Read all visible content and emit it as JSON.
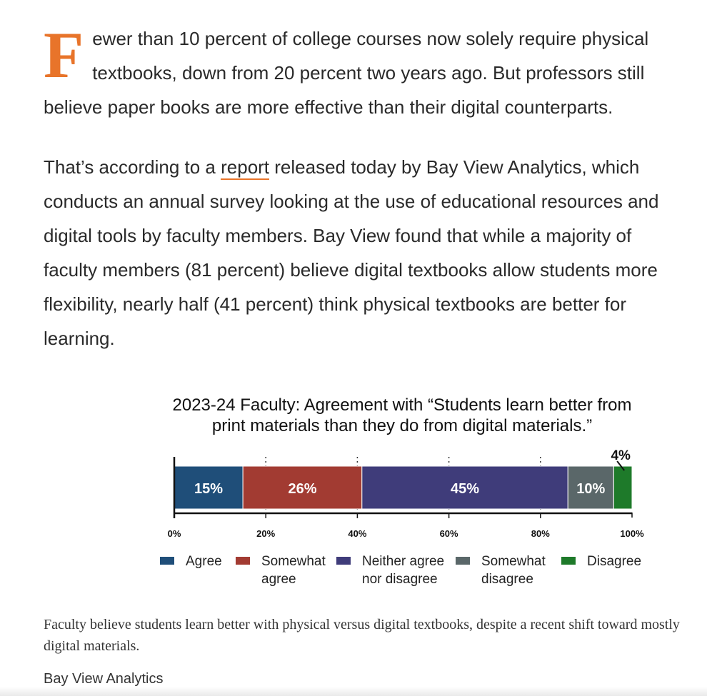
{
  "article": {
    "dropcap": "F",
    "p1_rest": "ewer than 10 percent of college courses now solely require physical textbooks, down from 20 percent two years ago. But professors still believe paper books are more effective than their digital counterparts.",
    "p2_before": "That’s according to a ",
    "p2_link": "report",
    "p2_after": " released today by Bay View Analytics, which conducts an annual survey looking at the use of educational resources and digital tools by faculty members. Bay View found that while a majority of faculty members (81 percent) believe digital textbooks allow students more flexibility, nearly half (41 percent) think physical textbooks are better for learning."
  },
  "colors": {
    "accent": "#e8742a",
    "text": "#2a2a2a"
  },
  "chart_data": {
    "type": "bar",
    "orientation": "horizontal-stacked",
    "title_line1": "2023-24 Faculty: Agreement with “Students learn better from",
    "title_line2": "print materials than they do from digital materials.”",
    "x_range": [
      0,
      100
    ],
    "x_ticks": [
      "0%",
      "20%",
      "40%",
      "60%",
      "80%",
      "100%"
    ],
    "grid": "dotted vertical at tick marks",
    "legend_position": "bottom",
    "series": [
      {
        "name": "Agree",
        "legend_lines": [
          "Agree"
        ],
        "value": 15,
        "label": "15%",
        "color": "#1f4e79"
      },
      {
        "name": "Somewhat agree",
        "legend_lines": [
          "Somewhat",
          "agree"
        ],
        "value": 26,
        "label": "26%",
        "color": "#a23b32"
      },
      {
        "name": "Neither agree nor disagree",
        "legend_lines": [
          "Neither agree",
          "nor disagree"
        ],
        "value": 45,
        "label": "45%",
        "color": "#3f3c7a"
      },
      {
        "name": "Somewhat disagree",
        "legend_lines": [
          "Somewhat",
          "disagree"
        ],
        "value": 10,
        "label": "10%",
        "color": "#5a6769"
      },
      {
        "name": "Disagree",
        "legend_lines": [
          "Disagree"
        ],
        "value": 4,
        "label": "4%",
        "color": "#1e7a2a"
      }
    ]
  },
  "caption": "Faculty believe students learn better with physical versus digital textbooks, despite a recent shift toward mostly digital materials.",
  "credit": "Bay View Analytics"
}
